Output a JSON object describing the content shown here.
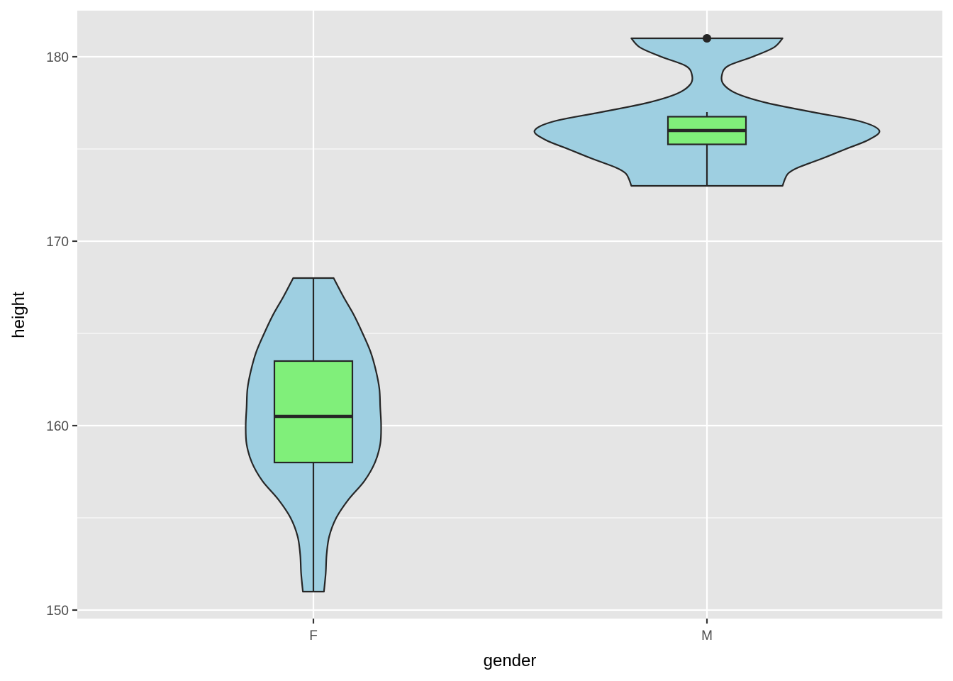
{
  "chart_data": {
    "type": "violin",
    "xlabel": "gender",
    "ylabel": "height",
    "categories": [
      "F",
      "M"
    ],
    "ylim": [
      149.5,
      182.5
    ],
    "y_ticks": [
      150,
      160,
      170,
      180
    ],
    "y_minor_ticks": [
      155,
      165,
      175
    ],
    "grid": true,
    "colors": {
      "panel": "#e5e5e5",
      "grid": "#ffffff",
      "violin_fill": "#9ecfe1",
      "box_fill": "#80ef7a",
      "outline": "#262626",
      "tick_text": "#4d4d4d"
    },
    "groups": [
      {
        "category": "F",
        "violin_range": [
          151,
          168
        ],
        "violin_profile": [
          [
            151,
            0.06
          ],
          [
            152,
            0.07
          ],
          [
            153,
            0.075
          ],
          [
            154,
            0.09
          ],
          [
            155,
            0.13
          ],
          [
            156,
            0.2
          ],
          [
            157,
            0.29
          ],
          [
            158,
            0.35
          ],
          [
            159,
            0.38
          ],
          [
            160,
            0.385
          ],
          [
            161,
            0.38
          ],
          [
            162,
            0.375
          ],
          [
            163,
            0.355
          ],
          [
            164,
            0.325
          ],
          [
            165,
            0.28
          ],
          [
            166,
            0.23
          ],
          [
            167,
            0.17
          ],
          [
            168,
            0.115
          ]
        ],
        "box": {
          "q1": 158,
          "median": 160.5,
          "q3": 163.5,
          "whisker_low": 151,
          "whisker_high": 168
        },
        "outliers": []
      },
      {
        "category": "M",
        "violin_range": [
          173,
          181
        ],
        "violin_profile": [
          [
            173,
            0.43
          ],
          [
            173.4,
            0.445
          ],
          [
            173.7,
            0.465
          ],
          [
            174,
            0.52
          ],
          [
            174.5,
            0.66
          ],
          [
            175,
            0.79
          ],
          [
            175.5,
            0.92
          ],
          [
            176,
            0.98
          ],
          [
            176.5,
            0.87
          ],
          [
            177,
            0.6
          ],
          [
            177.5,
            0.34
          ],
          [
            178,
            0.17
          ],
          [
            178.5,
            0.095
          ],
          [
            179,
            0.085
          ],
          [
            179.5,
            0.12
          ],
          [
            180,
            0.26
          ],
          [
            180.5,
            0.38
          ],
          [
            181,
            0.43
          ]
        ],
        "box": {
          "q1": 175.25,
          "median": 176,
          "q3": 176.75,
          "whisker_low": 173,
          "whisker_high": 177
        },
        "outliers": [
          181
        ]
      }
    ]
  }
}
